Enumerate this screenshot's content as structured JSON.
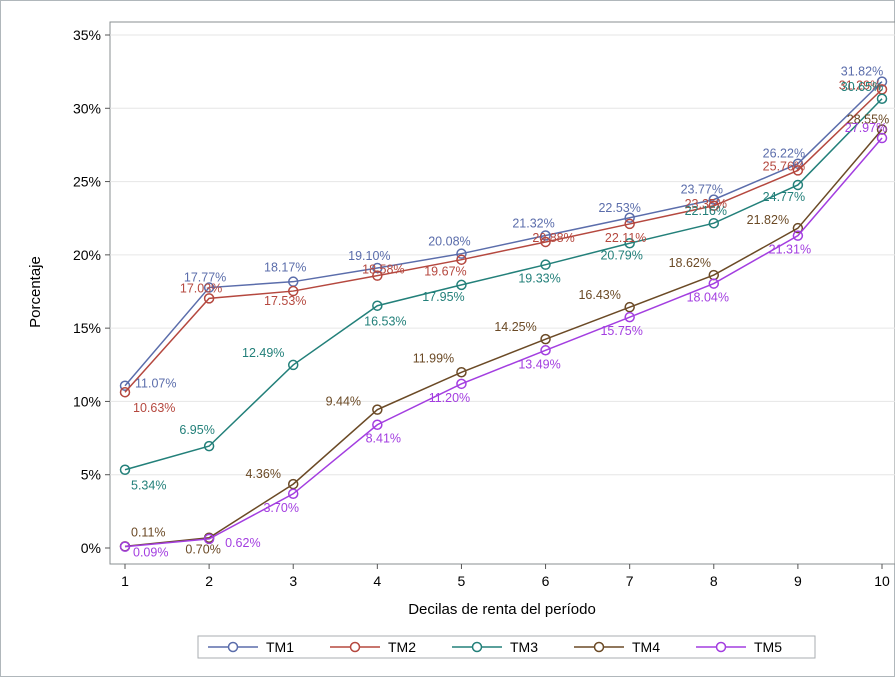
{
  "chart_data": {
    "type": "line",
    "title": "",
    "xlabel": "Decilas de renta del período",
    "ylabel": "Porcentaje",
    "x": [
      1,
      2,
      3,
      4,
      5,
      6,
      7,
      8,
      9,
      10
    ],
    "ylim": [
      0,
      0.35
    ],
    "yticks": [
      0,
      0.05,
      0.1,
      0.15,
      0.2,
      0.25,
      0.3,
      0.35
    ],
    "ytick_labels": [
      "0%",
      "5%",
      "10%",
      "15%",
      "20%",
      "25%",
      "30%",
      "35%"
    ],
    "xtick_labels": [
      "1",
      "2",
      "3",
      "4",
      "5",
      "6",
      "7",
      "8",
      "9",
      "10"
    ],
    "grid": true,
    "legend": "bottom",
    "series": [
      {
        "name": "TM1",
        "color": "#5b6dab",
        "values": [
          0.1107,
          0.1777,
          0.1817,
          0.191,
          0.2008,
          0.2132,
          0.2253,
          0.2377,
          0.2622,
          0.3182
        ],
        "labels": [
          "11.07%",
          "17.77%",
          "18.17%",
          "19.10%",
          "20.08%",
          "21.32%",
          "22.53%",
          "23.77%",
          "26.22%",
          "31.82%"
        ]
      },
      {
        "name": "TM2",
        "color": "#b5483f",
        "values": [
          0.1063,
          0.1703,
          0.1753,
          0.1858,
          0.1967,
          0.2088,
          0.2211,
          0.2335,
          0.2576,
          0.3129
        ],
        "labels": [
          "10.63%",
          "17.03%",
          "17.53%",
          "18.58%",
          "19.67%",
          "20.88%",
          "22.11%",
          "23.35%",
          "25.76%",
          "31.29%"
        ]
      },
      {
        "name": "TM3",
        "color": "#23807a",
        "values": [
          0.0534,
          0.0695,
          0.1249,
          0.1653,
          0.1795,
          0.1933,
          0.2079,
          0.2216,
          0.2477,
          0.3065
        ],
        "labels": [
          "5.34%",
          "6.95%",
          "12.49%",
          "16.53%",
          "17.95%",
          "19.33%",
          "20.79%",
          "22.16%",
          "24.77%",
          "30.65%"
        ]
      },
      {
        "name": "TM4",
        "color": "#6b4a26",
        "values": [
          0.0011,
          0.007,
          0.0436,
          0.0944,
          0.1199,
          0.1425,
          0.1643,
          0.1862,
          0.2182,
          0.2855
        ],
        "labels": [
          "0.11%",
          "0.70%",
          "4.36%",
          "9.44%",
          "11.99%",
          "14.25%",
          "16.43%",
          "18.62%",
          "21.82%",
          "28.55%"
        ]
      },
      {
        "name": "TM5",
        "color": "#a33ee0",
        "values": [
          0.0009,
          0.0062,
          0.037,
          0.0841,
          0.112,
          0.1349,
          0.1575,
          0.1804,
          0.2131,
          0.2797
        ],
        "labels": [
          "0.09%",
          "0.62%",
          "3.70%",
          "8.41%",
          "11.20%",
          "13.49%",
          "15.75%",
          "18.04%",
          "21.31%",
          "27.97%"
        ]
      }
    ]
  }
}
